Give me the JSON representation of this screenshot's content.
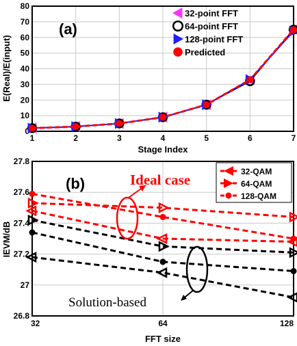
{
  "colors": {
    "magenta": "#ff33ff",
    "black": "#000000",
    "blue": "#1f1fff",
    "red": "#ff0000"
  },
  "chart_data": [
    {
      "type": "line",
      "panel_label": "(a)",
      "xlabel": "Stage Index",
      "ylabel": "E(Real)/E(input)",
      "x": [
        1,
        2,
        3,
        4,
        5,
        6,
        7
      ],
      "xlim": [
        1,
        7
      ],
      "ylim": [
        0,
        80
      ],
      "xticks": [
        "1",
        "2",
        "3",
        "4",
        "5",
        "6",
        "7"
      ],
      "yticks": [
        "0",
        "10",
        "20",
        "30",
        "40",
        "50",
        "60",
        "70",
        "80"
      ],
      "grid": true,
      "legend_position": "top-left",
      "series": [
        {
          "name": "32-point FFT",
          "values": [
            2,
            3,
            5,
            9,
            17,
            33,
            65
          ],
          "color": "#ff33ff",
          "marker": "triangle-left"
        },
        {
          "name": "64-point FFT",
          "values": [
            2,
            3,
            5,
            9,
            17,
            32,
            65
          ],
          "color": "#000000",
          "marker": "circle-open"
        },
        {
          "name": "128-point FFT",
          "values": [
            2,
            3,
            5,
            9,
            17,
            33,
            64
          ],
          "color": "#1f1fff",
          "marker": "triangle-right"
        },
        {
          "name": "Predicted",
          "values": [
            2,
            3,
            5,
            9,
            17,
            33,
            65
          ],
          "color": "#ff0000",
          "marker": "circle-filled"
        }
      ]
    },
    {
      "type": "line",
      "panel_label": "(b)",
      "xlabel": "FFT size",
      "ylabel": "IEVM/dB",
      "categories": [
        "32",
        "64",
        "128"
      ],
      "ylim": [
        26.8,
        27.8
      ],
      "yticks": [
        "26.8",
        "27",
        "27.2",
        "27.4",
        "27.6",
        "27.8"
      ],
      "grid": true,
      "legend_position": "top-right",
      "series": [
        {
          "name": "32-QAM",
          "group": "ideal",
          "values": [
            27.48,
            27.3,
            27.28
          ],
          "color": "#ff0000",
          "marker": "triangle-left"
        },
        {
          "name": "64-QAM",
          "group": "ideal",
          "values": [
            27.53,
            27.5,
            27.44
          ],
          "color": "#ff0000",
          "marker": "triangle-right"
        },
        {
          "name": "128-QAM",
          "group": "ideal",
          "values": [
            27.59,
            27.44,
            27.3
          ],
          "color": "#ff0000",
          "marker": "circle-filled"
        },
        {
          "name": "32-QAM",
          "group": "solution",
          "values": [
            27.18,
            27.08,
            26.92
          ],
          "color": "#000000",
          "marker": "triangle-left"
        },
        {
          "name": "64-QAM",
          "group": "solution",
          "values": [
            27.42,
            27.25,
            27.21
          ],
          "color": "#000000",
          "marker": "triangle-right"
        },
        {
          "name": "128-QAM",
          "group": "solution",
          "values": [
            27.34,
            27.15,
            27.09
          ],
          "color": "#000000",
          "marker": "circle-filled"
        }
      ],
      "annotations": {
        "ideal": "Ideal case",
        "solution": "Solution-based"
      }
    }
  ]
}
